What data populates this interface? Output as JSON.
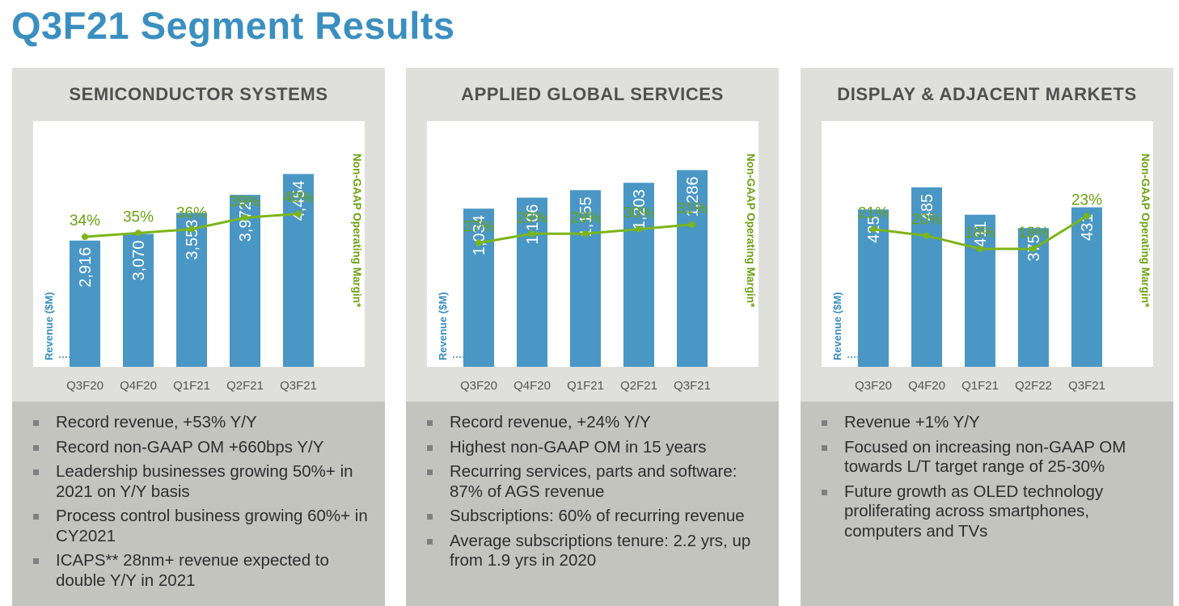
{
  "page": {
    "title": "Q3F21 Segment Results"
  },
  "colors": {
    "bar": "#4a97c6",
    "line": "#7cb518",
    "title": "#3a8fc0"
  },
  "chart_data": [
    {
      "type": "bar",
      "title": "SEMICONDUCTOR SYSTEMS",
      "categories": [
        "Q3F20",
        "Q4F20",
        "Q1F21",
        "Q2F21",
        "Q3F21"
      ],
      "series": [
        {
          "name": "Revenue ($M)",
          "values": [
            2916,
            3070,
            3553,
            3972,
            4454
          ],
          "labels": [
            "2,916",
            "3,070",
            "3,553",
            "3,972",
            "4,454"
          ]
        },
        {
          "name": "Non-GAAP Operating Margin*",
          "type": "line",
          "values": [
            34,
            35,
            36,
            39,
            40
          ],
          "labels": [
            "34%",
            "35%",
            "36%",
            "39%",
            "40%"
          ]
        }
      ],
      "ylabel": "Revenue ($M)",
      "y2label": "Non-GAAP Operating Margin*",
      "ylim": [
        0,
        5300
      ],
      "y2lim": [
        0,
        60
      ]
    },
    {
      "type": "bar",
      "title": "APPLIED GLOBAL SERVICES",
      "categories": [
        "Q3F20",
        "Q4F20",
        "Q1F21",
        "Q2F21",
        "Q3F21"
      ],
      "series": [
        {
          "name": "Revenue ($M)",
          "values": [
            1034,
            1106,
            1155,
            1203,
            1286
          ],
          "labels": [
            "1,034",
            "1,106",
            "1,155",
            "1,203",
            "1,286"
          ]
        },
        {
          "name": "Non-GAAP Operating Margin*",
          "type": "line",
          "values": [
            27,
            29,
            29,
            30,
            31
          ],
          "labels": [
            "27%",
            "29%",
            "29%",
            "30%",
            "31%"
          ]
        }
      ],
      "ylabel": "Revenue ($M)",
      "y2label": "Non-GAAP Operating Margin*",
      "ylim": [
        0,
        1500
      ],
      "y2lim": [
        0,
        50
      ]
    },
    {
      "type": "bar",
      "title": "DISPLAY & ADJACENT MARKETS",
      "categories": [
        "Q3F20",
        "Q4F20",
        "Q1F21",
        "Q2F22",
        "Q3F21"
      ],
      "series": [
        {
          "name": "Revenue ($M)",
          "values": [
            425,
            485,
            411,
            375,
            431
          ],
          "labels": [
            "425",
            "485",
            "411",
            "375",
            "431"
          ]
        },
        {
          "name": "Non-GAAP Operating Margin*",
          "type": "line",
          "values": [
            21,
            20,
            18,
            18,
            23
          ],
          "labels": [
            "21%",
            "20%",
            "18%",
            "18%",
            "23%"
          ]
        }
      ],
      "ylabel": "Revenue ($M)",
      "y2label": "Non-GAAP Operating Margin*",
      "ylim": [
        0,
        620
      ],
      "y2lim": [
        0,
        35
      ]
    }
  ],
  "panels": [
    {
      "title": "SEMICONDUCTOR SYSTEMS",
      "bullets": [
        "Record revenue, +53% Y/Y",
        "Record non-GAAP OM +660bps Y/Y",
        "Leadership businesses growing 50%+ in 2021 on Y/Y basis",
        "Process control business growing 60%+ in CY2021",
        "ICAPS** 28nm+ revenue expected to double Y/Y in 2021"
      ]
    },
    {
      "title": "APPLIED GLOBAL SERVICES",
      "bullets": [
        "Record revenue, +24% Y/Y",
        "Highest non-GAAP OM in 15 years",
        "Recurring services, parts and software: 87% of AGS revenue",
        "Subscriptions: 60% of recurring revenue",
        "Average subscriptions tenure: 2.2 yrs, up from 1.9 yrs in 2020"
      ]
    },
    {
      "title": "DISPLAY & ADJACENT MARKETS",
      "bullets": [
        "Revenue +1% Y/Y",
        "Focused on increasing non-GAAP OM towards L/T target range of 25-30%",
        "Future growth as OLED technology proliferating across smartphones, computers and TVs"
      ]
    }
  ]
}
